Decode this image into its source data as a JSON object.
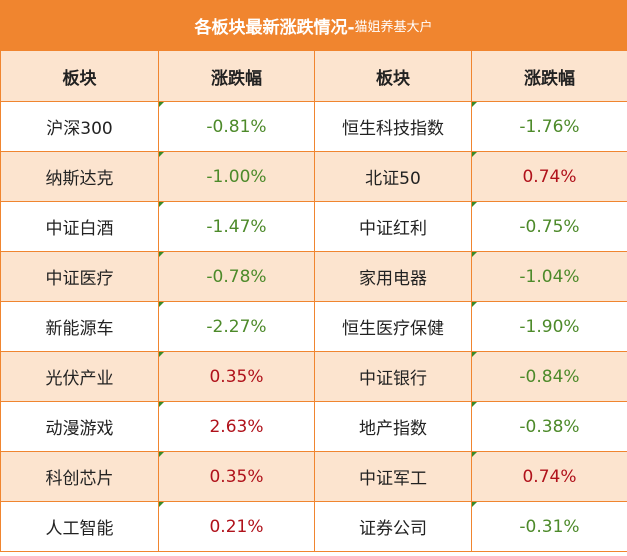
{
  "title": {
    "main": "各板块最新涨跌情况-",
    "sub": "猫姐养基大户"
  },
  "headers": [
    "板块",
    "涨跌幅",
    "板块",
    "涨跌幅"
  ],
  "rows": [
    {
      "left_name": "沪深300",
      "left_change": "-0.81%",
      "right_name": "恒生科技指数",
      "right_change": "-1.76%"
    },
    {
      "left_name": "纳斯达克",
      "left_change": "-1.00%",
      "right_name": "北证50",
      "right_change": "0.74%"
    },
    {
      "left_name": "中证白酒",
      "left_change": "-1.47%",
      "right_name": "中证红利",
      "right_change": "-0.75%"
    },
    {
      "left_name": "中证医疗",
      "left_change": "-0.78%",
      "right_name": "家用电器",
      "right_change": "-1.04%"
    },
    {
      "left_name": "新能源车",
      "left_change": "-2.27%",
      "right_name": "恒生医疗保健",
      "right_change": "-1.90%"
    },
    {
      "left_name": "光伏产业",
      "left_change": "0.35%",
      "right_name": "中证银行",
      "right_change": "-0.84%"
    },
    {
      "left_name": "动漫游戏",
      "left_change": "2.63%",
      "right_name": "地产指数",
      "right_change": "-0.38%"
    },
    {
      "left_name": "科创芯片",
      "left_change": "0.35%",
      "right_name": "中证军工",
      "right_change": "0.74%"
    },
    {
      "left_name": "人工智能",
      "left_change": "0.21%",
      "right_name": "证券公司",
      "right_change": "-0.31%"
    }
  ],
  "colors": {
    "header": "#f0852f",
    "band": "#fce4cf",
    "up": "#b0121b",
    "down": "#4d8a2a"
  }
}
